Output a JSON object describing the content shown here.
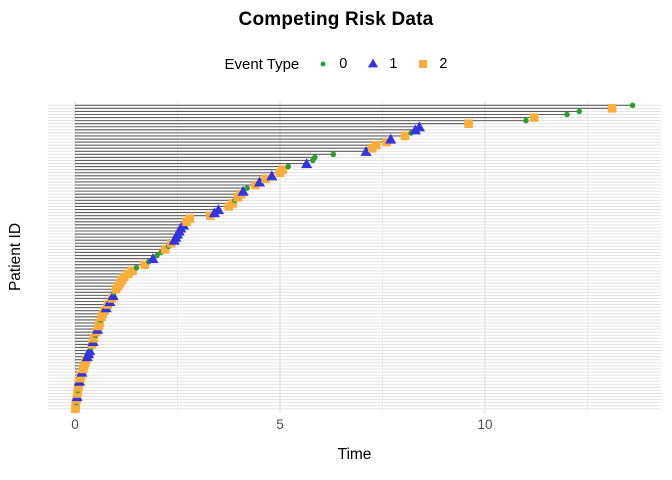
{
  "title": "Competing Risk Data",
  "legend": {
    "title": "Event Type",
    "items": [
      {
        "label": "0",
        "shape": "circle",
        "color": "#2E9E2E"
      },
      {
        "label": "1",
        "shape": "triangle",
        "color": "#3333E0"
      },
      {
        "label": "2",
        "shape": "square",
        "color": "#FBAD3C"
      }
    ]
  },
  "axes": {
    "x": {
      "label": "Time",
      "tick_labels": [
        "0",
        "5",
        "10"
      ],
      "tick_values": [
        0,
        5,
        10
      ],
      "minor_tick_values": [
        2.5,
        7.5,
        12.5
      ]
    },
    "y": {
      "label": "Patient ID",
      "tick_labels": []
    }
  },
  "chart_data": {
    "type": "scatter",
    "subtype": "event-history-segments",
    "title": "Competing Risk Data",
    "xlabel": "Time",
    "ylabel": "Patient ID",
    "xlim": [
      0,
      13.6
    ],
    "x_ticks": [
      0,
      5,
      10
    ],
    "x_minor_ticks": [
      2.5,
      7.5,
      12.5
    ],
    "grid": true,
    "legend_title": "Event Type",
    "legend_position": "top",
    "n_patients": 100,
    "colors": {
      "0": "#2E9E2E",
      "1": "#3333E0",
      "2": "#FBAD3C",
      "segment": "#5E5E5E",
      "row_grid": "#E3E3E3",
      "major_grid": "#DBDBDB",
      "minor_grid": "#EDEDED"
    },
    "marker_by_event": {
      "0": "green circle",
      "1": "blue triangle",
      "2": "orange square"
    },
    "rows_format": "[time, event_type] sorted ascending, drawn bottom-to-top",
    "rows": [
      [
        0.01,
        2
      ],
      [
        0.02,
        2
      ],
      [
        0.03,
        0
      ],
      [
        0.04,
        2
      ],
      [
        0.05,
        1
      ],
      [
        0.06,
        2
      ],
      [
        0.07,
        0
      ],
      [
        0.08,
        2
      ],
      [
        0.09,
        2
      ],
      [
        0.11,
        1
      ],
      [
        0.13,
        2
      ],
      [
        0.15,
        2
      ],
      [
        0.17,
        1
      ],
      [
        0.2,
        2
      ],
      [
        0.22,
        2
      ],
      [
        0.25,
        2
      ],
      [
        0.27,
        2
      ],
      [
        0.3,
        1
      ],
      [
        0.33,
        1
      ],
      [
        0.36,
        1
      ],
      [
        0.4,
        0
      ],
      [
        0.42,
        2
      ],
      [
        0.44,
        1
      ],
      [
        0.46,
        2
      ],
      [
        0.5,
        0
      ],
      [
        0.52,
        2
      ],
      [
        0.55,
        1
      ],
      [
        0.58,
        2
      ],
      [
        0.6,
        2
      ],
      [
        0.62,
        0
      ],
      [
        0.65,
        2
      ],
      [
        0.68,
        2
      ],
      [
        0.72,
        2
      ],
      [
        0.76,
        1
      ],
      [
        0.8,
        2
      ],
      [
        0.85,
        1
      ],
      [
        0.9,
        2
      ],
      [
        0.93,
        1
      ],
      [
        0.95,
        0
      ],
      [
        1.0,
        2
      ],
      [
        1.05,
        2
      ],
      [
        1.1,
        2
      ],
      [
        1.15,
        2
      ],
      [
        1.2,
        2
      ],
      [
        1.3,
        2
      ],
      [
        1.4,
        2
      ],
      [
        1.5,
        0
      ],
      [
        1.7,
        2
      ],
      [
        1.8,
        0
      ],
      [
        1.9,
        1
      ],
      [
        2.0,
        0
      ],
      [
        2.1,
        0
      ],
      [
        2.2,
        2
      ],
      [
        2.28,
        0
      ],
      [
        2.35,
        2
      ],
      [
        2.42,
        1
      ],
      [
        2.46,
        1
      ],
      [
        2.5,
        1
      ],
      [
        2.54,
        1
      ],
      [
        2.58,
        1
      ],
      [
        2.65,
        1
      ],
      [
        2.72,
        2
      ],
      [
        2.8,
        2
      ],
      [
        3.3,
        2
      ],
      [
        3.4,
        1
      ],
      [
        3.5,
        1
      ],
      [
        3.75,
        2
      ],
      [
        3.85,
        2
      ],
      [
        3.9,
        0
      ],
      [
        3.97,
        2
      ],
      [
        4.05,
        2
      ],
      [
        4.1,
        1
      ],
      [
        4.2,
        0
      ],
      [
        4.4,
        2
      ],
      [
        4.5,
        1
      ],
      [
        4.65,
        2
      ],
      [
        4.8,
        1
      ],
      [
        5.0,
        2
      ],
      [
        5.07,
        2
      ],
      [
        5.2,
        0
      ],
      [
        5.65,
        1
      ],
      [
        5.8,
        0
      ],
      [
        5.85,
        0
      ],
      [
        6.3,
        0
      ],
      [
        7.1,
        1
      ],
      [
        7.25,
        2
      ],
      [
        7.35,
        2
      ],
      [
        7.6,
        2
      ],
      [
        7.7,
        1
      ],
      [
        8.05,
        2
      ],
      [
        8.2,
        0
      ],
      [
        8.3,
        1
      ],
      [
        8.4,
        1
      ],
      [
        9.6,
        2
      ],
      [
        11.0,
        0
      ],
      [
        11.2,
        2
      ],
      [
        12.0,
        0
      ],
      [
        12.3,
        0
      ],
      [
        13.1,
        2
      ],
      [
        13.6,
        0
      ]
    ]
  }
}
